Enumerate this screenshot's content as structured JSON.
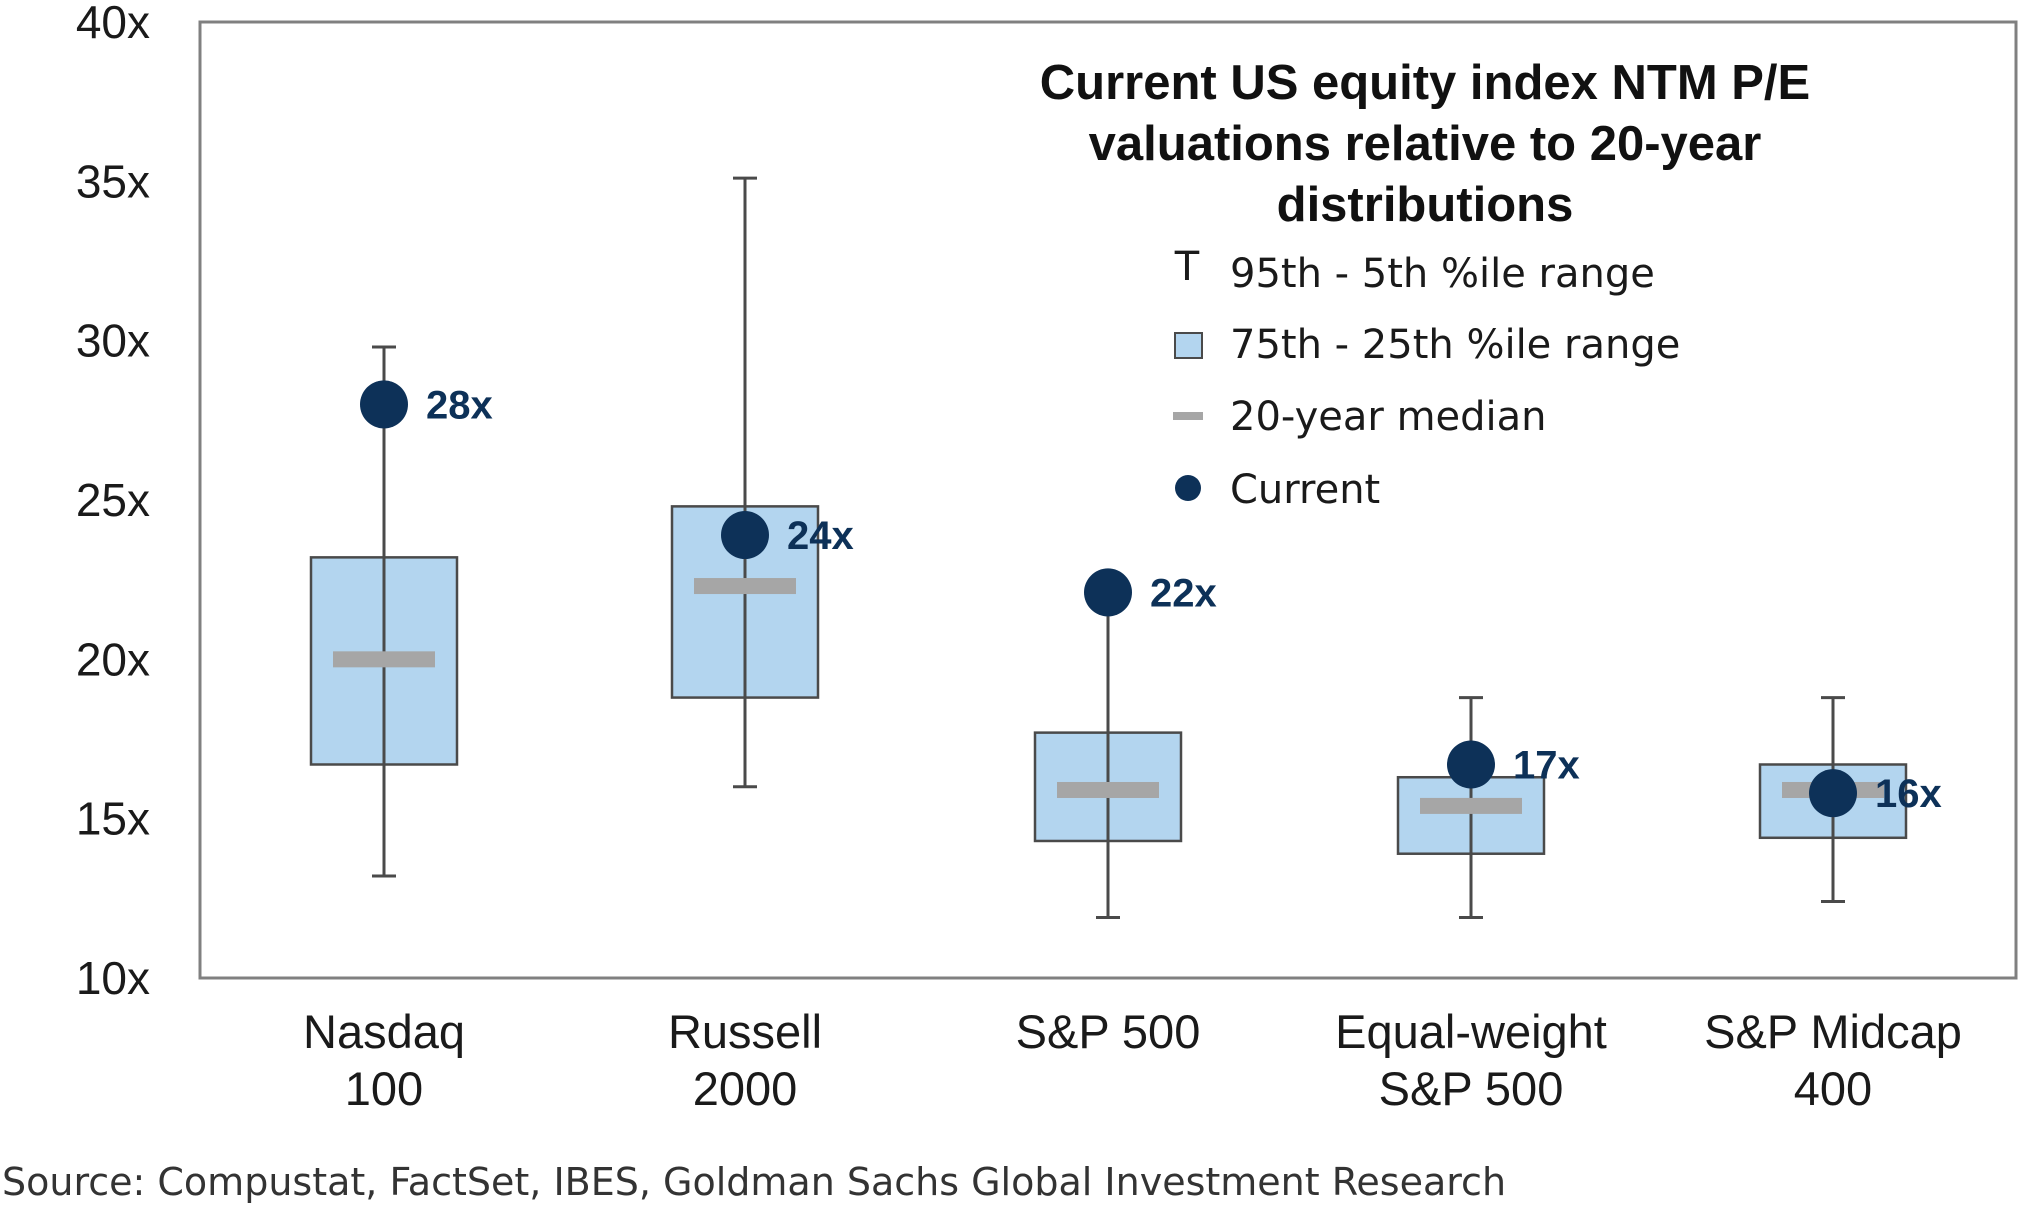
{
  "chart_data": {
    "type": "box",
    "title": "Current US equity index NTM P/E valuations relative to 20-year distributions",
    "title_lines": [
      "Current US equity index NTM P/E",
      "valuations relative to 20-year",
      "distributions"
    ],
    "ylim": [
      10,
      40
    ],
    "yticks": [
      {
        "value": 10,
        "label": "10x"
      },
      {
        "value": 15,
        "label": "15x"
      },
      {
        "value": 20,
        "label": "20x"
      },
      {
        "value": 25,
        "label": "25x"
      },
      {
        "value": 30,
        "label": "30x"
      },
      {
        "value": 35,
        "label": "35x"
      },
      {
        "value": 40,
        "label": "40x"
      }
    ],
    "grid": false,
    "legend_position": "top-right",
    "legend": [
      {
        "symbol": "T",
        "key": "whisker",
        "label": "95th - 5th %ile range"
      },
      {
        "key": "box",
        "label": "75th - 25th %ile range"
      },
      {
        "key": "median",
        "label": "20-year median"
      },
      {
        "key": "current",
        "label": "Current"
      }
    ],
    "colors": {
      "box_fill": "#b3d5ef",
      "box_edge": "#4a4a4a",
      "median": "#a6a6a6",
      "current": "#0d3158",
      "whisker": "#4a4a4a",
      "axis": "#7f7f7f"
    },
    "categories": [
      {
        "label_lines": [
          "Nasdaq",
          "100"
        ],
        "p5": 13.2,
        "p25": 16.7,
        "median": 20.0,
        "p75": 23.2,
        "p95": 29.8,
        "current": 28.0,
        "current_label": "28x"
      },
      {
        "label_lines": [
          "Russell",
          "2000"
        ],
        "p5": 16.0,
        "p25": 18.8,
        "median": 22.3,
        "p75": 24.8,
        "p95": 35.1,
        "current": 23.9,
        "current_label": "24x"
      },
      {
        "label_lines": [
          "S&P 500"
        ],
        "p5": 11.9,
        "p25": 14.3,
        "median": 15.9,
        "p75": 17.7,
        "p95": 22.2,
        "current": 22.1,
        "current_label": "22x"
      },
      {
        "label_lines": [
          "Equal-weight",
          "S&P 500"
        ],
        "p5": 11.9,
        "p25": 13.9,
        "median": 15.4,
        "p75": 16.3,
        "p95": 18.8,
        "current": 16.7,
        "current_label": "17x"
      },
      {
        "label_lines": [
          "S&P Midcap",
          "400"
        ],
        "p5": 12.4,
        "p25": 14.4,
        "median": 15.9,
        "p75": 16.7,
        "p95": 18.8,
        "current": 15.8,
        "current_label": "16x"
      }
    ]
  },
  "source": "Source: Compustat, FactSet, IBES, Goldman Sachs Global Investment Research"
}
